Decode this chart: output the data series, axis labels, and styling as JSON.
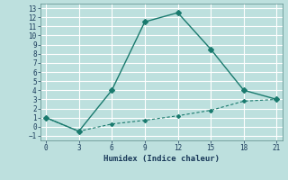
{
  "line1_x": [
    0,
    3,
    6,
    9,
    12,
    15,
    18,
    21
  ],
  "line1_y": [
    1,
    -0.5,
    4,
    11.5,
    12.5,
    8.5,
    4,
    3
  ],
  "line2_x": [
    0,
    3,
    6,
    9,
    12,
    15,
    18,
    21
  ],
  "line2_y": [
    1,
    -0.5,
    0.3,
    0.7,
    1.2,
    1.8,
    2.8,
    3.0
  ],
  "line_color": "#1a7a6e",
  "background_color": "#bde0de",
  "grid_color": "#ffffff",
  "xlabel": "Humidex (Indice chaleur)",
  "xlim": [
    -0.5,
    21.5
  ],
  "ylim": [
    -1.5,
    13.5
  ],
  "xticks": [
    0,
    3,
    6,
    9,
    12,
    15,
    18,
    21
  ],
  "yticks": [
    -1,
    0,
    1,
    2,
    3,
    4,
    5,
    6,
    7,
    8,
    9,
    10,
    11,
    12,
    13
  ]
}
